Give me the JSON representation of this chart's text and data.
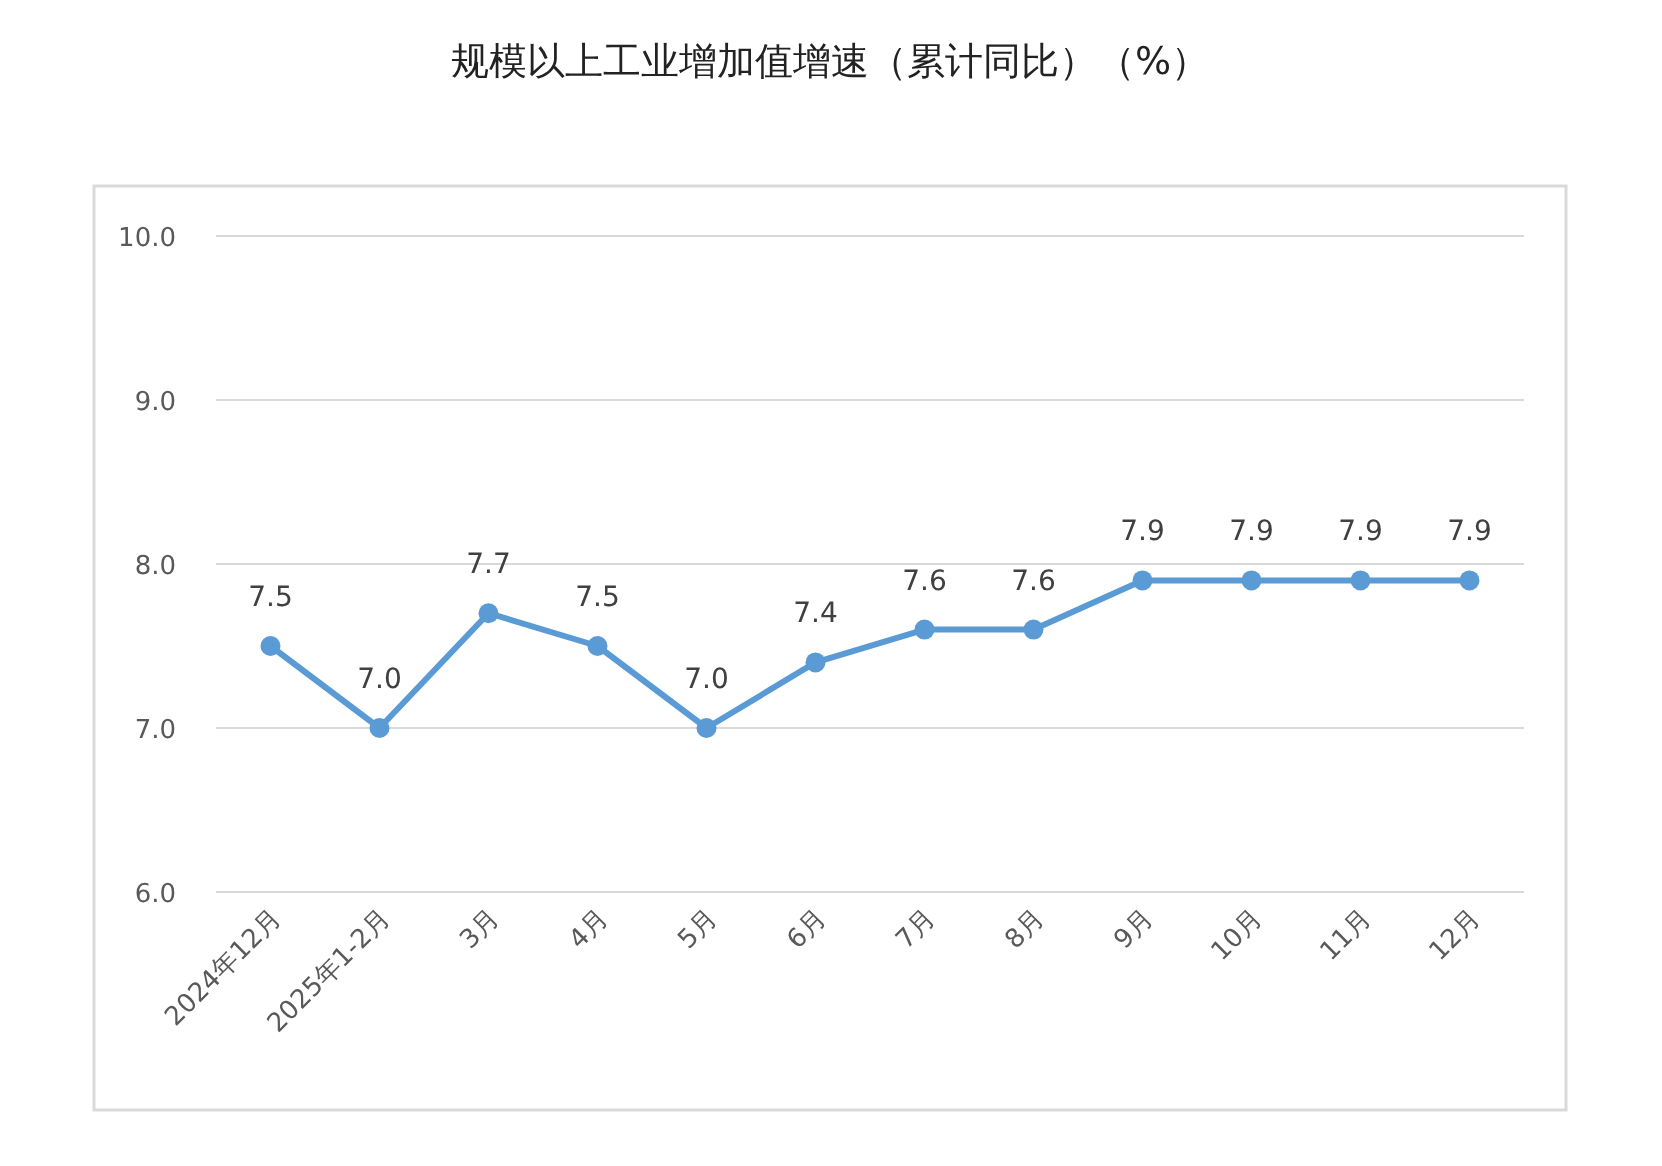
{
  "chart_data": {
    "type": "line",
    "title": "规模以上工业增加值增速（累计同比）（%）",
    "categories": [
      "2024年12月",
      "2025年1-2月",
      "3月",
      "4月",
      "5月",
      "6月",
      "7月",
      "8月",
      "9月",
      "10月",
      "11月",
      "12月"
    ],
    "series": [
      {
        "color": "#5b9bd5",
        "values": [
          7.5,
          7.0,
          7.7,
          7.5,
          7.0,
          7.4,
          7.6,
          7.6,
          7.9,
          7.9,
          7.9,
          7.9
        ],
        "value_labels": [
          "7.5",
          "7.0",
          "7.7",
          "7.5",
          "7.0",
          "7.4",
          "7.6",
          "7.6",
          "7.9",
          "7.9",
          "7.9",
          "7.9"
        ]
      }
    ],
    "ylim": [
      6,
      10
    ],
    "yticks": [
      {
        "value": 6,
        "label": "6.0"
      },
      {
        "value": 7,
        "label": "7.0"
      },
      {
        "value": 8,
        "label": "8.0"
      },
      {
        "value": 9,
        "label": "9.0"
      },
      {
        "value": 10,
        "label": "10.0"
      }
    ],
    "grid": "y",
    "marker": "circle",
    "line_style": "solid"
  }
}
